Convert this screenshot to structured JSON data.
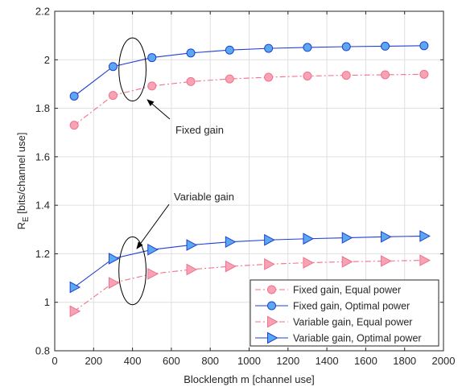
{
  "chart_data": {
    "type": "line",
    "xlabel": "Blocklength m [channel use]",
    "ylabel_main": "R",
    "ylabel_sub": "E",
    "ylabel_rest": " [bits/channel use]",
    "xlim": [
      0,
      2000
    ],
    "ylim": [
      0.8,
      2.2
    ],
    "xticks": [
      "0",
      "200",
      "400",
      "600",
      "800",
      "1000",
      "1200",
      "1400",
      "1600",
      "1800",
      "2000"
    ],
    "yticks": [
      "0.8",
      "1",
      "1.2",
      "1.4",
      "1.6",
      "1.8",
      "2",
      "2.2"
    ],
    "grid": true,
    "legend_position": "bottom-right",
    "x": [
      100,
      300,
      500,
      700,
      900,
      1100,
      1300,
      1500,
      1700,
      1900
    ],
    "series": [
      {
        "name": "Fixed gain, Equal power",
        "style": "dashdot",
        "marker": "circle",
        "color": "#f2718a",
        "fill": "#f7a3b5",
        "values": [
          1.73,
          1.853,
          1.892,
          1.91,
          1.921,
          1.928,
          1.933,
          1.936,
          1.938,
          1.94
        ]
      },
      {
        "name": "Fixed gain, Optimal power",
        "style": "solid",
        "marker": "circle",
        "color": "#1f3fd6",
        "fill": "#5aa9f0",
        "values": [
          1.85,
          1.972,
          2.009,
          2.028,
          2.04,
          2.047,
          2.051,
          2.054,
          2.056,
          2.058
        ]
      },
      {
        "name": "Variable gain, Equal power",
        "style": "dashdot",
        "marker": "triangle-right",
        "color": "#f2718a",
        "fill": "#f7a3b5",
        "values": [
          0.963,
          1.08,
          1.117,
          1.135,
          1.148,
          1.157,
          1.163,
          1.167,
          1.17,
          1.173
        ]
      },
      {
        "name": "Variable gain, Optimal power",
        "style": "solid",
        "marker": "triangle-right",
        "color": "#1f3fd6",
        "fill": "#5aa9f0",
        "values": [
          1.062,
          1.18,
          1.217,
          1.236,
          1.249,
          1.257,
          1.262,
          1.266,
          1.27,
          1.273
        ]
      }
    ],
    "annotations": [
      {
        "text": "Fixed gain",
        "target": "fixed-gain-ellipse"
      },
      {
        "text": "Variable gain",
        "target": "variable-gain-ellipse"
      }
    ],
    "ellipses": [
      {
        "name": "fixed-gain-ellipse",
        "cx": 400,
        "cy": 1.96,
        "rx": 70,
        "ry": 0.13
      },
      {
        "name": "variable-gain-ellipse",
        "cx": 400,
        "cy": 1.13,
        "rx": 70,
        "ry": 0.14
      }
    ]
  }
}
